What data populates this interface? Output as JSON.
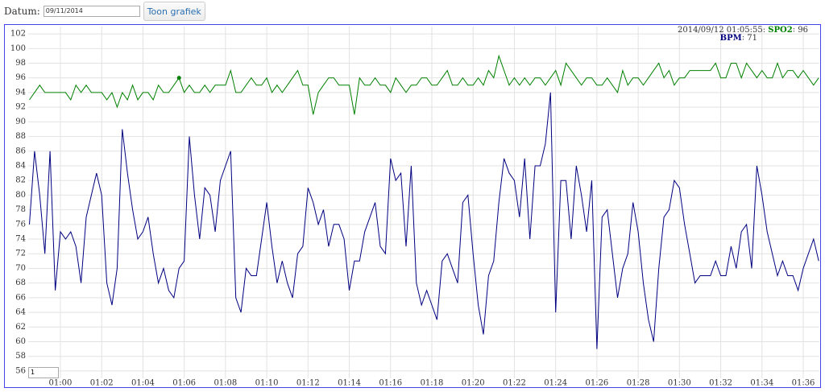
{
  "form": {
    "date_label": "Datum:",
    "date_value": "09/11/2014",
    "button": "Toon grafiek",
    "roll_period": "1"
  },
  "chart_data": {
    "type": "line",
    "x": [
      58.5,
      58.75,
      59,
      59.25,
      59.5,
      59.75,
      60,
      60.25,
      60.5,
      60.75,
      61,
      61.25,
      61.5,
      61.75,
      62,
      62.25,
      62.5,
      62.75,
      63,
      63.25,
      63.5,
      63.75,
      64,
      64.25,
      64.5,
      64.75,
      65,
      65.25,
      65.5,
      65.75,
      66,
      66.25,
      66.5,
      66.75,
      67,
      67.25,
      67.5,
      67.75,
      68,
      68.25,
      68.5,
      68.75,
      69,
      69.25,
      69.5,
      69.75,
      70,
      70.25,
      70.5,
      70.75,
      71,
      71.25,
      71.5,
      71.75,
      72,
      72.25,
      72.5,
      72.75,
      73,
      73.25,
      73.5,
      73.75,
      74,
      74.25,
      74.5,
      74.75,
      75,
      75.25,
      75.5,
      75.75,
      76,
      76.25,
      76.5,
      76.75,
      77,
      77.25,
      77.5,
      77.75,
      78,
      78.25,
      78.5,
      78.75,
      79,
      79.25,
      79.5,
      79.75,
      80,
      80.25,
      80.5,
      80.75,
      81,
      81.25,
      81.5,
      81.75,
      82,
      82.25,
      82.5,
      82.75,
      83,
      83.25,
      83.5,
      83.75,
      84,
      84.25,
      84.5,
      84.75,
      85,
      85.25,
      85.5,
      85.75,
      86,
      86.25,
      86.5,
      86.75,
      87,
      87.25,
      87.5,
      87.75,
      88,
      88.25,
      88.5,
      88.75,
      89,
      89.25,
      89.5,
      89.75,
      90,
      90.25,
      90.5,
      90.75,
      91,
      91.25,
      91.5,
      91.75,
      92,
      92.25,
      92.5,
      92.75,
      93,
      93.25,
      93.5,
      93.75,
      94,
      94.25,
      94.5,
      94.75,
      95,
      95.25,
      95.5,
      95.75,
      96,
      96.25,
      96.5,
      96.75
    ],
    "series": [
      {
        "name": "SPO2",
        "color": "#008000",
        "values": [
          93,
          94,
          95,
          94,
          94,
          94,
          94,
          94,
          93,
          95,
          94,
          95,
          94,
          94,
          94,
          93,
          94,
          92,
          94,
          93,
          95,
          93,
          94,
          94,
          93,
          95,
          94,
          94,
          95,
          96,
          94,
          95,
          94,
          94,
          95,
          94,
          95,
          95,
          95,
          97,
          94,
          94,
          95,
          96,
          95,
          95,
          96,
          94,
          95,
          94,
          95,
          96,
          97,
          95,
          95,
          91,
          94,
          95,
          96,
          96,
          95,
          95,
          95,
          91,
          96,
          95,
          95,
          96,
          95,
          95,
          94,
          96,
          95,
          94,
          95,
          95,
          96,
          96,
          95,
          95,
          96,
          97,
          95,
          95,
          96,
          95,
          95,
          96,
          95,
          97,
          96,
          99,
          97,
          95,
          96,
          95,
          96,
          95,
          96,
          96,
          95,
          96,
          97,
          95,
          98,
          97,
          96,
          95,
          96,
          96,
          95,
          95,
          96,
          95,
          94,
          97,
          95,
          96,
          96,
          95,
          96,
          97,
          98,
          96,
          97,
          95,
          96,
          96,
          97,
          97,
          97,
          97,
          97,
          98,
          96,
          96,
          98,
          98,
          96,
          98,
          97,
          96,
          97,
          96,
          96,
          98,
          96,
          97,
          97,
          96,
          97,
          96,
          95,
          96
        ]
      },
      {
        "name": "BPM",
        "color": "#000080",
        "values": [
          76,
          86,
          80,
          72,
          86,
          67,
          75,
          74,
          75,
          73,
          68,
          77,
          80,
          83,
          80,
          68,
          65,
          70,
          89,
          83,
          78,
          74,
          75,
          77,
          72,
          68,
          70,
          67,
          66,
          70,
          71,
          88,
          80,
          74,
          81,
          80,
          75,
          82,
          84,
          86,
          66,
          64,
          70,
          69,
          69,
          74,
          79,
          73,
          68,
          71,
          68,
          66,
          72,
          73,
          81,
          79,
          76,
          78,
          73,
          76,
          76,
          74,
          67,
          71,
          71,
          75,
          77,
          79,
          73,
          72,
          85,
          82,
          83,
          73,
          84,
          68,
          65,
          67,
          65,
          63,
          71,
          72,
          70,
          68,
          79,
          80,
          72,
          65,
          61,
          69,
          71,
          79,
          85,
          83,
          82,
          77,
          85,
          74,
          84,
          84,
          87,
          94,
          64,
          82,
          82,
          74,
          84,
          80,
          75,
          82,
          59,
          77,
          78,
          72,
          66,
          70,
          72,
          79,
          75,
          68,
          63,
          60,
          70,
          77,
          78,
          82,
          81,
          76,
          72,
          68,
          69,
          69,
          69,
          71,
          69,
          69,
          73,
          70,
          75,
          76,
          70,
          84,
          80,
          75,
          72,
          69,
          71,
          69,
          69,
          67,
          70,
          72,
          74,
          71
        ]
      }
    ],
    "xlim": [
      58.44,
      96.78
    ],
    "ylim": [
      55,
      103
    ],
    "xticks": [
      {
        "value": 60,
        "label": "01:00"
      },
      {
        "value": 62,
        "label": "01:02"
      },
      {
        "value": 64,
        "label": "01:04"
      },
      {
        "value": 66,
        "label": "01:06"
      },
      {
        "value": 68,
        "label": "01:08"
      },
      {
        "value": 70,
        "label": "01:10"
      },
      {
        "value": 72,
        "label": "01:12"
      },
      {
        "value": 74,
        "label": "01:14"
      },
      {
        "value": 76,
        "label": "01:16"
      },
      {
        "value": 78,
        "label": "01:18"
      },
      {
        "value": 80,
        "label": "01:20"
      },
      {
        "value": 82,
        "label": "01:22"
      },
      {
        "value": 84,
        "label": "01:24"
      },
      {
        "value": 86,
        "label": "01:26"
      },
      {
        "value": 88,
        "label": "01:28"
      },
      {
        "value": 90,
        "label": "01:30"
      },
      {
        "value": 92,
        "label": "01:32"
      },
      {
        "value": 94,
        "label": "01:34"
      },
      {
        "value": 96,
        "label": "01:36"
      }
    ],
    "yticks": [
      56,
      58,
      60,
      62,
      64,
      66,
      68,
      70,
      72,
      74,
      76,
      78,
      80,
      82,
      84,
      86,
      88,
      90,
      92,
      94,
      96,
      98,
      100,
      102
    ],
    "grid": true,
    "highlight": {
      "label": "2014/09/12 01:05:55:",
      "spo2": 96,
      "bpm": 71
    }
  }
}
